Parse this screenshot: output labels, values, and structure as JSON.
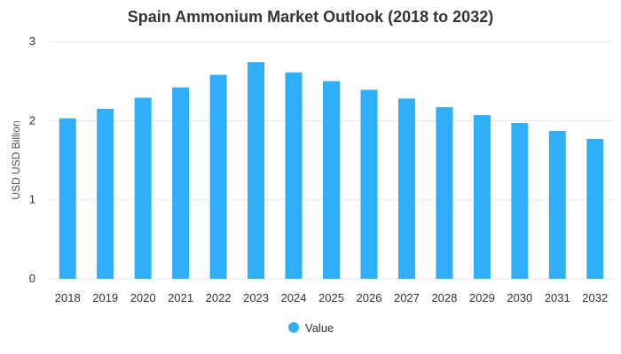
{
  "chart_data": {
    "type": "bar",
    "title": "Spain Ammonium Market Outlook (2018 to 2032)",
    "xlabel": "",
    "ylabel": "USD USD Billion",
    "categories": [
      "2018",
      "2019",
      "2020",
      "2021",
      "2022",
      "2023",
      "2024",
      "2025",
      "2026",
      "2027",
      "2028",
      "2029",
      "2030",
      "2031",
      "2032"
    ],
    "series": [
      {
        "name": "Value",
        "values": [
          2.03,
          2.15,
          2.29,
          2.42,
          2.58,
          2.74,
          2.61,
          2.5,
          2.39,
          2.28,
          2.17,
          2.07,
          1.97,
          1.87,
          1.77
        ]
      }
    ],
    "ylim": [
      0,
      3
    ],
    "yticks": [
      "0",
      "1",
      "2",
      "3"
    ],
    "grid": true,
    "legend_position": "bottom-center",
    "colors": {
      "bar": "#2eaefb"
    }
  }
}
